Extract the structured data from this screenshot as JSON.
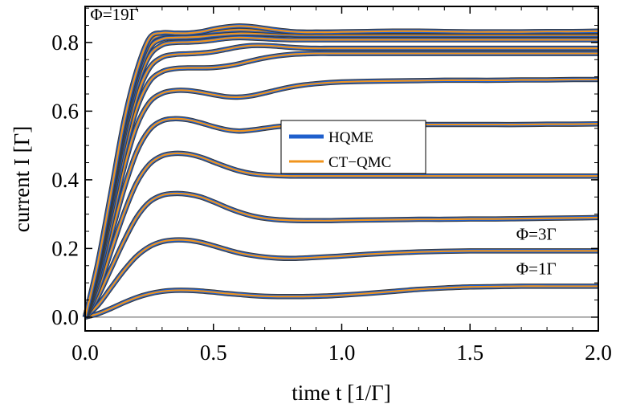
{
  "chart_data": {
    "type": "line",
    "xlabel": "time t [1/Γ]",
    "ylabel": "current I [Γ]",
    "xlim": [
      0.0,
      2.0
    ],
    "ylim": [
      -0.04,
      0.905
    ],
    "xticks": [
      "0.0",
      "0.5",
      "1.0",
      "1.5",
      "2.0"
    ],
    "xtick_values": [
      0.0,
      0.5,
      1.0,
      1.5,
      2.0
    ],
    "yticks": [
      "0.0",
      "0.2",
      "0.4",
      "0.6",
      "0.8"
    ],
    "ytick_values": [
      0.0,
      0.2,
      0.4,
      0.6,
      0.8
    ],
    "grid": false,
    "legend_position": "center",
    "legend": [
      {
        "name": "HQME",
        "color": "#1f5fcc"
      },
      {
        "name": "CT−QMC",
        "color": "#f0941d"
      }
    ],
    "annotations": [
      {
        "text": "Φ=19Γ",
        "x": 0.02,
        "y": 0.865
      },
      {
        "text": "Φ=3Γ",
        "x": 1.68,
        "y": 0.225
      },
      {
        "text": "Φ=1Γ",
        "x": 1.68,
        "y": 0.125
      }
    ],
    "colors": {
      "hqme": "#1f5fcc",
      "ctqmc": "#f0941d",
      "outline": "#3a3a3a"
    },
    "x": [
      0.0,
      0.05,
      0.1,
      0.15,
      0.2,
      0.25,
      0.3,
      0.35,
      0.4,
      0.45,
      0.5,
      0.55,
      0.6,
      0.65,
      0.7,
      0.75,
      0.8,
      0.85,
      0.9,
      0.95,
      1.0,
      1.1,
      1.2,
      1.3,
      1.4,
      1.5,
      1.6,
      1.7,
      1.8,
      1.9,
      2.0
    ],
    "series": [
      {
        "values": [
          0.0,
          0.01,
          0.025,
          0.042,
          0.057,
          0.068,
          0.075,
          0.078,
          0.078,
          0.076,
          0.073,
          0.069,
          0.066,
          0.063,
          0.061,
          0.06,
          0.06,
          0.06,
          0.061,
          0.062,
          0.064,
          0.069,
          0.075,
          0.081,
          0.085,
          0.088,
          0.089,
          0.09,
          0.09,
          0.09,
          0.09
        ]
      },
      {
        "values": [
          0.0,
          0.035,
          0.085,
          0.135,
          0.177,
          0.205,
          0.22,
          0.225,
          0.224,
          0.218,
          0.208,
          0.197,
          0.187,
          0.18,
          0.175,
          0.172,
          0.171,
          0.172,
          0.174,
          0.176,
          0.178,
          0.183,
          0.187,
          0.19,
          0.192,
          0.193,
          0.193,
          0.193,
          0.193,
          0.193,
          0.193
        ]
      },
      {
        "values": [
          0.0,
          0.06,
          0.14,
          0.22,
          0.29,
          0.335,
          0.355,
          0.36,
          0.358,
          0.35,
          0.336,
          0.32,
          0.306,
          0.295,
          0.288,
          0.284,
          0.282,
          0.281,
          0.281,
          0.281,
          0.282,
          0.283,
          0.284,
          0.285,
          0.285,
          0.286,
          0.286,
          0.287,
          0.288,
          0.289,
          0.29
        ]
      },
      {
        "values": [
          0.0,
          0.08,
          0.19,
          0.3,
          0.39,
          0.445,
          0.47,
          0.477,
          0.475,
          0.466,
          0.452,
          0.438,
          0.426,
          0.418,
          0.414,
          0.412,
          0.411,
          0.411,
          0.411,
          0.411,
          0.411,
          0.411,
          0.411,
          0.411,
          0.411,
          0.411,
          0.411,
          0.411,
          0.411,
          0.411,
          0.411
        ]
      },
      {
        "values": [
          0.0,
          0.1,
          0.235,
          0.37,
          0.48,
          0.545,
          0.572,
          0.578,
          0.575,
          0.566,
          0.555,
          0.546,
          0.542,
          0.545,
          0.55,
          0.555,
          0.558,
          0.56,
          0.561,
          0.561,
          0.561,
          0.561,
          0.561,
          0.561,
          0.561,
          0.561,
          0.561,
          0.561,
          0.562,
          0.562,
          0.563
        ]
      },
      {
        "values": [
          0.0,
          0.115,
          0.27,
          0.43,
          0.555,
          0.625,
          0.652,
          0.66,
          0.66,
          0.655,
          0.648,
          0.642,
          0.641,
          0.645,
          0.653,
          0.662,
          0.67,
          0.676,
          0.68,
          0.683,
          0.685,
          0.687,
          0.688,
          0.689,
          0.69,
          0.69,
          0.69,
          0.691,
          0.691,
          0.692,
          0.692
        ]
      },
      {
        "values": [
          0.0,
          0.13,
          0.3,
          0.47,
          0.605,
          0.685,
          0.715,
          0.724,
          0.726,
          0.726,
          0.727,
          0.731,
          0.738,
          0.747,
          0.755,
          0.761,
          0.765,
          0.767,
          0.768,
          0.768,
          0.768,
          0.768,
          0.768,
          0.768,
          0.768,
          0.768,
          0.768,
          0.768,
          0.768,
          0.768,
          0.768
        ]
      },
      {
        "values": [
          0.0,
          0.14,
          0.32,
          0.5,
          0.64,
          0.725,
          0.757,
          0.765,
          0.767,
          0.769,
          0.773,
          0.78,
          0.787,
          0.791,
          0.791,
          0.789,
          0.786,
          0.784,
          0.783,
          0.783,
          0.783,
          0.783,
          0.783,
          0.783,
          0.783,
          0.783,
          0.783,
          0.783,
          0.783,
          0.783,
          0.783
        ]
      },
      {
        "values": [
          0.0,
          0.145,
          0.335,
          0.525,
          0.67,
          0.76,
          0.793,
          0.8,
          0.801,
          0.803,
          0.807,
          0.812,
          0.814,
          0.813,
          0.811,
          0.809,
          0.808,
          0.808,
          0.808,
          0.808,
          0.808,
          0.808,
          0.808,
          0.808,
          0.808,
          0.808,
          0.808,
          0.808,
          0.808,
          0.808,
          0.808
        ]
      },
      {
        "values": [
          0.0,
          0.15,
          0.345,
          0.54,
          0.69,
          0.783,
          0.81,
          0.814,
          0.815,
          0.817,
          0.821,
          0.824,
          0.826,
          0.826,
          0.825,
          0.824,
          0.823,
          0.822,
          0.822,
          0.822,
          0.822,
          0.822,
          0.822,
          0.822,
          0.822,
          0.822,
          0.822,
          0.822,
          0.822,
          0.822,
          0.822
        ]
      },
      {
        "values": [
          0.0,
          0.155,
          0.355,
          0.555,
          0.705,
          0.8,
          0.823,
          0.826,
          0.827,
          0.829,
          0.832,
          0.835,
          0.837,
          0.836,
          0.834,
          0.832,
          0.831,
          0.83,
          0.83,
          0.83,
          0.83,
          0.83,
          0.83,
          0.83,
          0.83,
          0.83,
          0.83,
          0.83,
          0.83,
          0.83,
          0.83
        ]
      },
      {
        "values": [
          0.0,
          0.16,
          0.36,
          0.565,
          0.715,
          0.812,
          0.828,
          0.827,
          0.827,
          0.831,
          0.839,
          0.845,
          0.848,
          0.846,
          0.841,
          0.836,
          0.832,
          0.83,
          0.83,
          0.83,
          0.831,
          0.832,
          0.833,
          0.833,
          0.832,
          0.831,
          0.831,
          0.831,
          0.832,
          0.832,
          0.833
        ]
      }
    ]
  }
}
